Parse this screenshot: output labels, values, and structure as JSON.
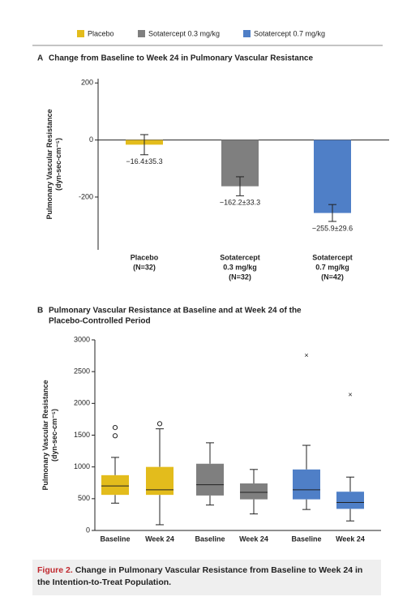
{
  "legend": [
    {
      "name": "Placebo",
      "color": "#e3bc1c"
    },
    {
      "name": "Sotatercept 0.3 mg/kg",
      "color": "#7f7f7f"
    },
    {
      "name": "Sotatercept 0.7 mg/kg",
      "color": "#4f7fc7"
    }
  ],
  "chart_data": [
    {
      "type": "bar",
      "label": "A",
      "title": "Change from Baseline to Week 24 in Pulmonary Vascular Resistance",
      "ylabel": [
        "Pulmonary Vascular Resistance",
        "(dyn-sec-cm⁻⁵)"
      ],
      "categories": [
        [
          "Placebo",
          "(N=32)"
        ],
        [
          "Sotatercept",
          "0.3 mg/kg",
          "(N=32)"
        ],
        [
          "Sotatercept",
          "0.7 mg/kg",
          "(N=42)"
        ]
      ],
      "values": [
        -16.4,
        -162.2,
        -255.9
      ],
      "errors": [
        35.3,
        33.3,
        29.6
      ],
      "value_labels": [
        "−16.4±35.3",
        "−162.2±33.3",
        "−255.9±29.6"
      ],
      "colors": [
        "#e3bc1c",
        "#7f7f7f",
        "#4f7fc7"
      ],
      "ylim": [
        -385,
        215
      ],
      "yticks": [
        200,
        0,
        -200
      ],
      "grid": false
    },
    {
      "type": "box",
      "label": "B",
      "title": [
        "Pulmonary Vascular Resistance at Baseline and at Week 24 of the",
        "Placebo-Controlled Period"
      ],
      "ylabel": [
        "Pulmonary Vascular Resistance",
        "(dyn-sec-cm⁻⁵)"
      ],
      "categories": [
        "Baseline",
        "Week 24",
        "Baseline",
        "Week 24",
        "Baseline",
        "Week 24"
      ],
      "colors": [
        "#e3bc1c",
        "#e3bc1c",
        "#7f7f7f",
        "#7f7f7f",
        "#4f7fc7",
        "#4f7fc7"
      ],
      "boxes": [
        {
          "whisker_low": 430,
          "q1": 560,
          "median": 700,
          "q3": 870,
          "whisker_high": 1150,
          "outliers": [
            1490,
            1620
          ]
        },
        {
          "whisker_low": 90,
          "q1": 560,
          "median": 640,
          "q3": 1000,
          "whisker_high": 1600,
          "outliers": [
            1680
          ]
        },
        {
          "whisker_low": 400,
          "q1": 550,
          "median": 720,
          "q3": 1050,
          "whisker_high": 1380,
          "outliers": []
        },
        {
          "whisker_low": 260,
          "q1": 490,
          "median": 600,
          "q3": 740,
          "whisker_high": 960,
          "outliers": []
        },
        {
          "whisker_low": 330,
          "q1": 490,
          "median": 640,
          "q3": 960,
          "whisker_high": 1340,
          "outliers": [
            2750
          ]
        },
        {
          "whisker_low": 150,
          "q1": 340,
          "median": 440,
          "q3": 610,
          "whisker_high": 840,
          "outliers": [
            2130
          ]
        }
      ],
      "ylim": [
        0,
        3000
      ],
      "yticks": [
        0,
        500,
        1000,
        1500,
        2000,
        2500,
        3000
      ],
      "grid": false
    }
  ],
  "caption": {
    "label": "Figure 2.",
    "text": "Change in Pulmonary Vascular Resistance from Baseline to Week 24 in the Intention-to-Treat Population."
  }
}
